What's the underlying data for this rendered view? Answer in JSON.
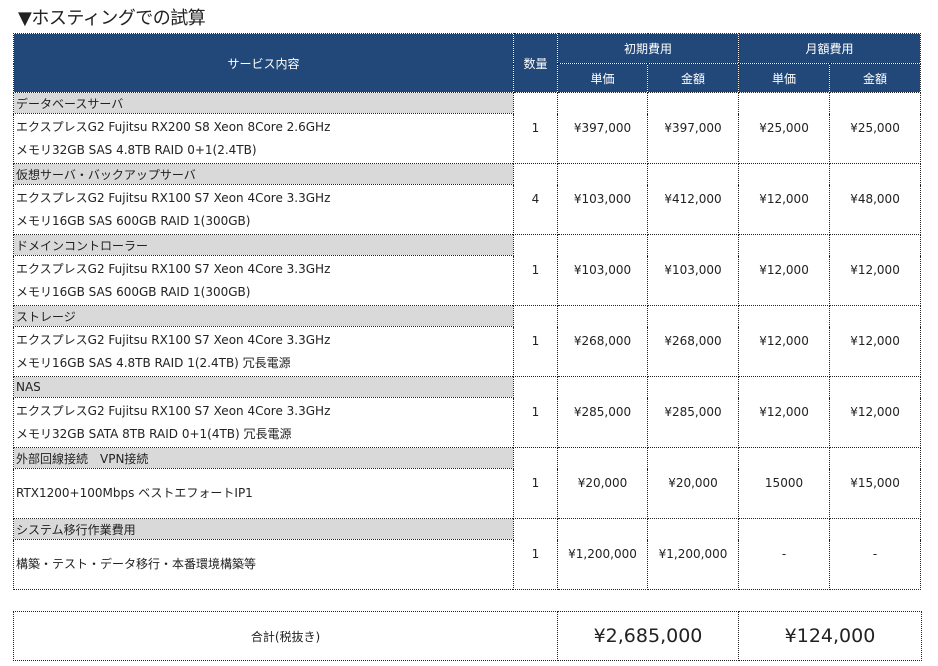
{
  "title": "▼ホスティングでの試算",
  "header": {
    "service": "サービス内容",
    "qty": "数量",
    "initial": "初期費用",
    "monthly": "月額費用",
    "unit": "単価",
    "amount": "金額"
  },
  "items": [
    {
      "category": "データベースサーバ",
      "lines": [
        "エクスプレスG2 Fujitsu RX200 S8 Xeon 8Core 2.6GHz",
        "メモリ32GB SAS 4.8TB RAID 0+1(2.4TB)"
      ],
      "qty": "1",
      "init_unit": "¥397,000",
      "init_amount": "¥397,000",
      "month_unit": "¥25,000",
      "month_amount": "¥25,000"
    },
    {
      "category": "仮想サーバ・バックアップサーバ",
      "lines": [
        "エクスプレスG2 Fujitsu RX100 S7 Xeon 4Core 3.3GHz",
        "メモリ16GB SAS 600GB RAID 1(300GB)"
      ],
      "qty": "4",
      "init_unit": "¥103,000",
      "init_amount": "¥412,000",
      "month_unit": "¥12,000",
      "month_amount": "¥48,000"
    },
    {
      "category": "ドメインコントローラー",
      "lines": [
        "エクスプレスG2 Fujitsu RX100 S7 Xeon 4Core 3.3GHz",
        "メモリ16GB SAS 600GB RAID 1(300GB)"
      ],
      "qty": "1",
      "init_unit": "¥103,000",
      "init_amount": "¥103,000",
      "month_unit": "¥12,000",
      "month_amount": "¥12,000"
    },
    {
      "category": "ストレージ",
      "lines": [
        "エクスプレスG2 Fujitsu RX100 S7 Xeon 4Core 3.3GHz",
        "メモリ16GB SAS 4.8TB RAID 1(2.4TB) 冗長電源"
      ],
      "qty": "1",
      "init_unit": "¥268,000",
      "init_amount": "¥268,000",
      "month_unit": "¥12,000",
      "month_amount": "¥12,000"
    },
    {
      "category": "NAS",
      "lines": [
        "エクスプレスG2 Fujitsu RX100 S7 Xeon 4Core 3.3GHz",
        "メモリ32GB SATA 8TB RAID 0+1(4TB) 冗長電源"
      ],
      "qty": "1",
      "init_unit": "¥285,000",
      "init_amount": "¥285,000",
      "month_unit": "¥12,000",
      "month_amount": "¥12,000"
    },
    {
      "category": "外部回線接続　VPN接続",
      "lines": [
        "RTX1200+100Mbps ベストエフォートIP1"
      ],
      "qty": "1",
      "init_unit": "¥20,000",
      "init_amount": "¥20,000",
      "month_unit": "15000",
      "month_amount": "¥15,000"
    },
    {
      "category": "システム移行作業費用",
      "lines": [
        "構築・テスト・データ移行・本番環境構築等"
      ],
      "qty": "1",
      "init_unit": "¥1,200,000",
      "init_amount": "¥1,200,000",
      "month_unit": "-",
      "month_amount": "-"
    }
  ],
  "total": {
    "label": "合計(税抜き)",
    "initial": "¥2,685,000",
    "monthly": "¥124,000"
  }
}
